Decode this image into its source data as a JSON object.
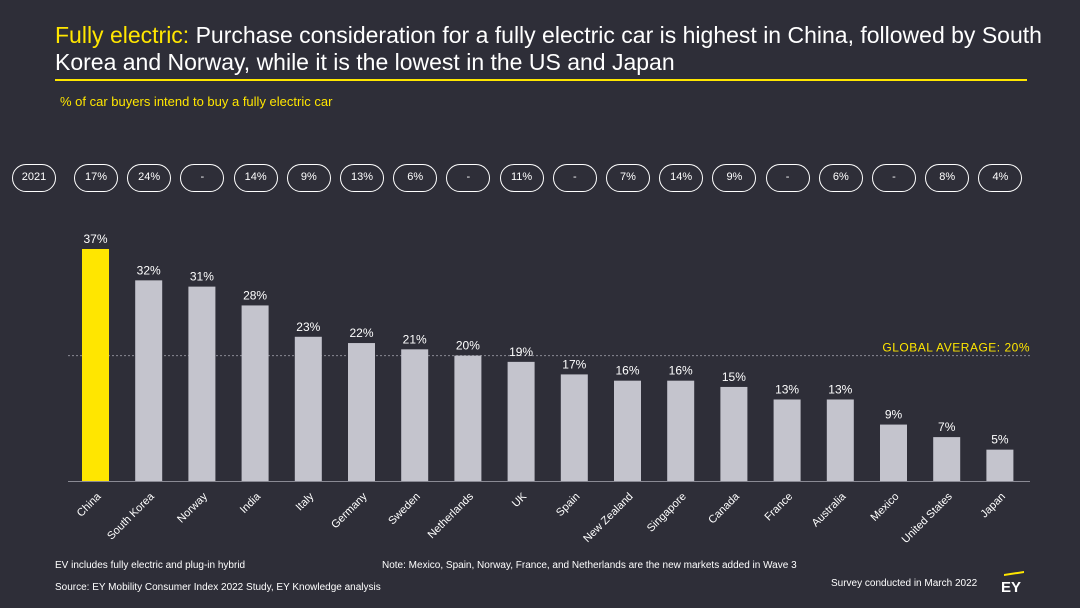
{
  "header": {
    "title_lead": "Fully electric:",
    "title_rest": " Purchase consideration for a fully electric car is highest in China, followed by South Korea and Norway, while it is the lowest in the US and Japan",
    "subtitle": "% of car buyers intend to buy a fully electric car"
  },
  "row_2021": {
    "label": "2021",
    "values": [
      "17%",
      "24%",
      "-",
      "14%",
      "9%",
      "13%",
      "6%",
      "-",
      "11%",
      "-",
      "7%",
      "14%",
      "9%",
      "-",
      "6%",
      "-",
      "8%",
      "4%"
    ]
  },
  "chart_data": {
    "type": "bar",
    "title": "% of car buyers intend to buy a fully electric car",
    "categories": [
      "China",
      "South Korea",
      "Norway",
      "India",
      "Italy",
      "Germany",
      "Sweden",
      "Netherlands",
      "UK",
      "Spain",
      "New Zealand",
      "Singapore",
      "Canada",
      "France",
      "Australia",
      "Mexico",
      "United States",
      "Japan"
    ],
    "values": [
      37,
      32,
      31,
      28,
      23,
      22,
      21,
      20,
      19,
      17,
      16,
      16,
      15,
      13,
      13,
      9,
      7,
      5
    ],
    "value_labels": [
      "37%",
      "32%",
      "31%",
      "28%",
      "23%",
      "22%",
      "21%",
      "20%",
      "19%",
      "17%",
      "16%",
      "16%",
      "15%",
      "13%",
      "13%",
      "9%",
      "7%",
      "5%"
    ],
    "highlight_index": 0,
    "reference_line": {
      "value": 20,
      "label": "GLOBAL AVERAGE: 20%"
    },
    "ylim": [
      0,
      37
    ],
    "xlabel": "",
    "ylabel": "",
    "colors": {
      "highlight": "#ffe600",
      "bar": "#c4c4cd",
      "reference": "#ffe600"
    }
  },
  "footer": {
    "note_left": "EV includes fully electric and plug-in hybrid",
    "note_center": "Note: Mexico, Spain, Norway, France, and Netherlands are the new markets added in Wave 3",
    "source": "Source: EY Mobility Consumer Index 2022 Study, EY Knowledge analysis",
    "survey": "Survey conducted in March 2022"
  },
  "brand": {
    "logo_text": "EY",
    "accent": "#ffe600"
  }
}
